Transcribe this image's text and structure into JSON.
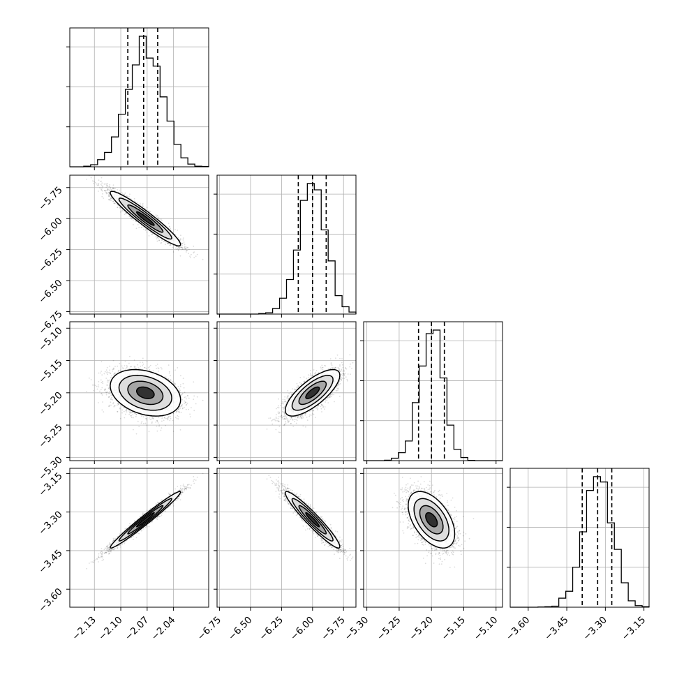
{
  "chart_data": {
    "type": "corner",
    "parameters": [
      {
        "ticks": [
          -2.13,
          -2.1,
          -2.07,
          -2.04
        ],
        "tick_labels": [
          "−2.13",
          "−2.10",
          "−2.07",
          "−2.04"
        ],
        "range": [
          -2.158,
          -2.0
        ],
        "center": -2.072,
        "sigma": 0.02,
        "quantiles": [
          -2.092,
          -2.074,
          -2.058
        ]
      },
      {
        "ticks": [
          -6.75,
          -6.5,
          -6.25,
          -6.0,
          -5.75
        ],
        "tick_labels": [
          "−6.75",
          "−6.50",
          "−6.25",
          "−6.00",
          "−5.75"
        ],
        "range": [
          -6.77,
          -5.65
        ],
        "center": -6.0,
        "sigma": 0.11,
        "quantiles": [
          -6.115,
          -6.0,
          -5.89
        ]
      },
      {
        "ticks": [
          -5.3,
          -5.25,
          -5.2,
          -5.15,
          -5.1
        ],
        "tick_labels": [
          "−5.30",
          "−5.25",
          "−5.20",
          "−5.15",
          "−5.10"
        ],
        "range": [
          -5.305,
          -5.09
        ],
        "center": -5.2,
        "sigma": 0.018,
        "quantiles": [
          -5.22,
          -5.2,
          -5.18
        ]
      },
      {
        "ticks": [
          -3.6,
          -3.45,
          -3.3,
          -3.15
        ],
        "tick_labels": [
          "−3.60",
          "−3.45",
          "−3.30",
          "−3.15"
        ],
        "range": [
          -3.67,
          -3.13
        ],
        "center": -3.33,
        "sigma": 0.055,
        "quantiles": [
          -3.39,
          -3.33,
          -3.275
        ]
      }
    ],
    "correlations": [
      [
        1,
        -0.95,
        -0.3,
        0.98
      ],
      [
        -0.95,
        1,
        0.75,
        -0.95
      ],
      [
        -0.3,
        0.75,
        1,
        -0.5
      ],
      [
        0.98,
        -0.95,
        -0.5,
        1
      ]
    ],
    "grid": true
  }
}
